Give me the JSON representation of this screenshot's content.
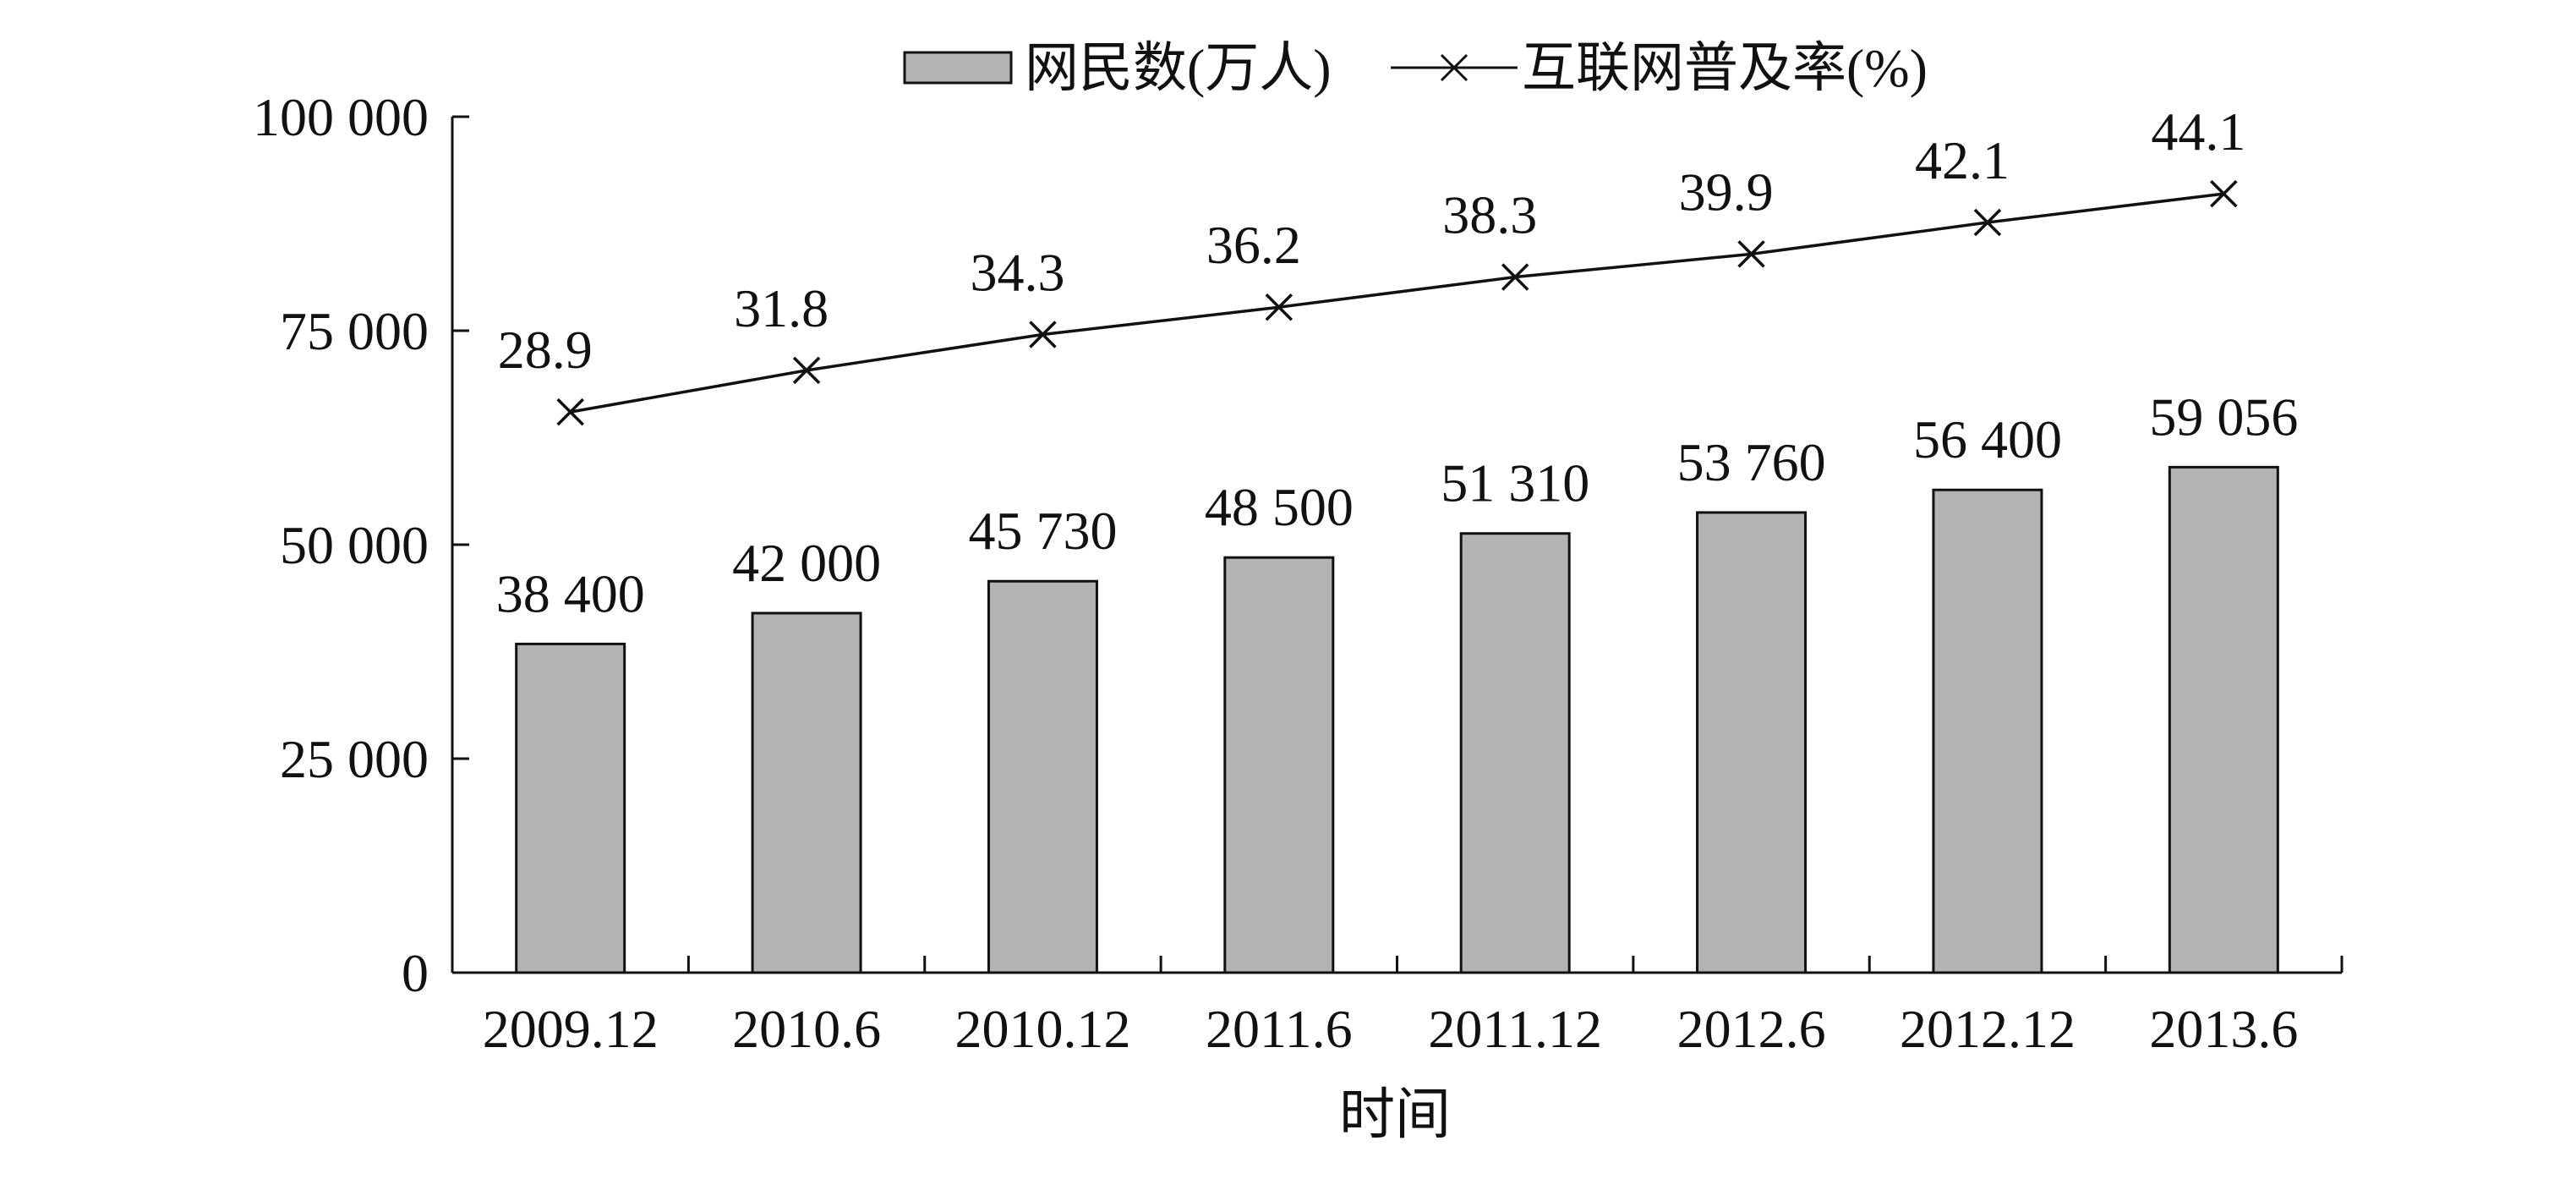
{
  "chart_data": {
    "type": "bar",
    "title": "",
    "xlabel": "时间",
    "ylabel": "",
    "categories": [
      "2009.12",
      "2010.6",
      "2010.12",
      "2011.6",
      "2011.12",
      "2012.6",
      "2012.12",
      "2013.6"
    ],
    "ylim": [
      0,
      100000
    ],
    "yticks": [
      0,
      25000,
      50000,
      75000,
      100000
    ],
    "ytick_labels": [
      "0",
      "25 000",
      "50 000",
      "75 000",
      "100 000"
    ],
    "grid": false,
    "legend_position": "top-center",
    "series": [
      {
        "name": "网民数(万人)",
        "type": "bar",
        "values": [
          38400,
          42000,
          45730,
          48500,
          51310,
          53760,
          56400,
          59056
        ],
        "labels": [
          "38 400",
          "42 000",
          "45 730",
          "48 500",
          "51 310",
          "53 760",
          "56 400",
          "59 056"
        ],
        "color": "#b3b3b3"
      },
      {
        "name": "互联网普及率(%)",
        "type": "line",
        "marker": "x",
        "values": [
          28.9,
          31.8,
          34.3,
          36.2,
          38.3,
          39.9,
          42.1,
          44.1
        ],
        "labels": [
          "28.9",
          "31.8",
          "34.3",
          "36.2",
          "38.3",
          "39.9",
          "42.1",
          "44.1"
        ],
        "color": "#111111"
      }
    ]
  }
}
